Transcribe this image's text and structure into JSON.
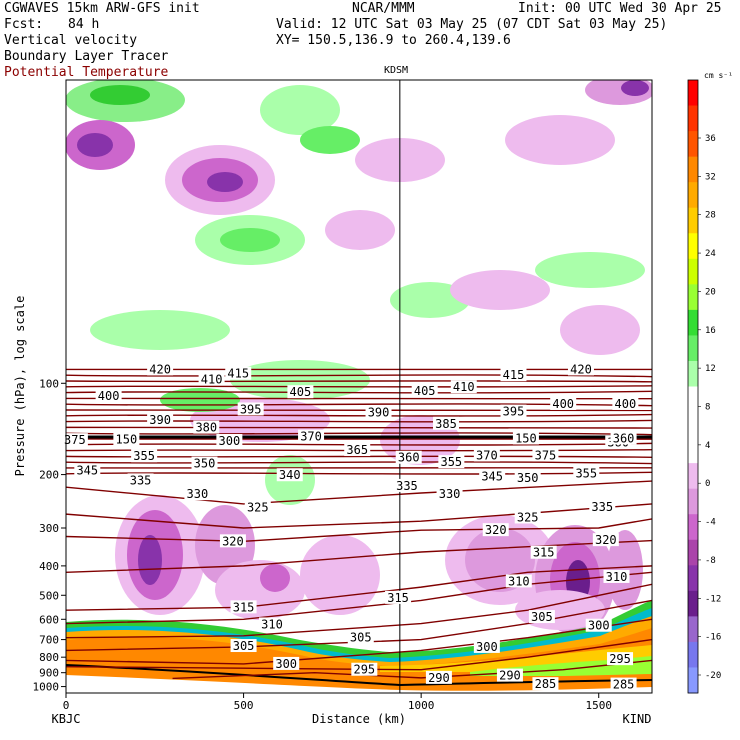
{
  "header": {
    "model": "CGWAVES 15km ARW-GFS init",
    "org": "NCAR/MMM",
    "init": "Init: 00 UTC Wed 30 Apr 25",
    "fcst_label": "Fcst:",
    "fcst_value": "84 h",
    "valid": "Valid: 12 UTC Sat 03 May 25 (07 CDT Sat 03 May 25)",
    "field1": "Vertical velocity",
    "field2": "Boundary Layer Tracer",
    "field3": "Potential Temperature",
    "xy": "XY= 150.5,136.9 to 260.4,139.6"
  },
  "colors": {
    "theta_contour": "#800000",
    "tropopause_line": "#000000"
  },
  "chart_data": {
    "type": "cross-section",
    "station_mid": "KDSM",
    "station_left": "KBJC",
    "station_right": "KIND",
    "xlabel": "Distance (km)",
    "ylabel": "Pressure (hPa), log scale",
    "xlim": [
      0,
      1650
    ],
    "ylim": [
      1050,
      10
    ],
    "x_ticks": [
      0,
      500,
      1000,
      1500
    ],
    "y_ticks": [
      100,
      200,
      300,
      400,
      500,
      600,
      700,
      800,
      900,
      1000
    ],
    "mid_station_x_km": 940,
    "colorbar": {
      "units": "cm s⁻¹",
      "labels": [
        "36",
        "32",
        "28",
        "24",
        "20",
        "16",
        "12",
        "8",
        "4",
        "0",
        "-4",
        "-8",
        "-12",
        "-16",
        "-20"
      ],
      "colors": [
        "#ff0000",
        "#ff3300",
        "#ff5500",
        "#ff8800",
        "#ffaa00",
        "#ffcc00",
        "#ffff00",
        "#ccff00",
        "#99ff33",
        "#33dd33",
        "#66ee66",
        "#aaffaa",
        "#ffffff",
        "#ffffff",
        "#ffffff",
        "#eebbee",
        "#dd99dd",
        "#cc66cc",
        "#aa44aa",
        "#8833aa",
        "#6a1e8c",
        "#9966cc",
        "#7777ee",
        "#8899ff"
      ]
    },
    "theta_labels": [
      {
        "v": "420",
        "x": 265,
        "p": 90
      },
      {
        "v": "415",
        "x": 485,
        "p": 93
      },
      {
        "v": "410",
        "x": 410,
        "p": 97
      },
      {
        "v": "405",
        "x": 660,
        "p": 107
      },
      {
        "v": "400",
        "x": 120,
        "p": 110
      },
      {
        "v": "395",
        "x": 520,
        "p": 122
      },
      {
        "v": "390",
        "x": 265,
        "p": 132
      },
      {
        "v": "380",
        "x": 395,
        "p": 140
      },
      {
        "v": "375",
        "x": 25,
        "p": 154
      },
      {
        "v": "370",
        "x": 690,
        "p": 150
      },
      {
        "v": "365",
        "x": 820,
        "p": 166
      },
      {
        "v": "360",
        "x": 965,
        "p": 176
      },
      {
        "v": "355",
        "x": 220,
        "p": 174
      },
      {
        "v": "350",
        "x": 390,
        "p": 184
      },
      {
        "v": "345",
        "x": 60,
        "p": 194
      },
      {
        "v": "340",
        "x": 630,
        "p": 201
      },
      {
        "v": "335",
        "x": 210,
        "p": 209
      },
      {
        "v": "330",
        "x": 370,
        "p": 232
      },
      {
        "v": "325",
        "x": 540,
        "p": 257
      },
      {
        "v": "320",
        "x": 470,
        "p": 332
      },
      {
        "v": "315",
        "x": 500,
        "p": 548
      },
      {
        "v": "310",
        "x": 580,
        "p": 624
      },
      {
        "v": "305",
        "x": 500,
        "p": 735
      },
      {
        "v": "300",
        "x": 620,
        "p": 842
      },
      {
        "v": "420",
        "x": 1450,
        "p": 90
      },
      {
        "v": "415",
        "x": 1260,
        "p": 94
      },
      {
        "v": "410",
        "x": 1120,
        "p": 103
      },
      {
        "v": "405",
        "x": 1010,
        "p": 106
      },
      {
        "v": "400",
        "x": 1400,
        "p": 117
      },
      {
        "v": "400",
        "x": 1575,
        "p": 117
      },
      {
        "v": "395",
        "x": 1260,
        "p": 124
      },
      {
        "v": "390",
        "x": 880,
        "p": 125
      },
      {
        "v": "385",
        "x": 1070,
        "p": 136
      },
      {
        "v": "380",
        "x": 1555,
        "p": 157
      },
      {
        "v": "375",
        "x": 1350,
        "p": 173
      },
      {
        "v": "370",
        "x": 1185,
        "p": 173
      },
      {
        "v": "355",
        "x": 1085,
        "p": 182
      },
      {
        "v": "355",
        "x": 1465,
        "p": 198
      },
      {
        "v": "350",
        "x": 1300,
        "p": 205
      },
      {
        "v": "345",
        "x": 1200,
        "p": 203
      },
      {
        "v": "335",
        "x": 960,
        "p": 218
      },
      {
        "v": "330",
        "x": 1080,
        "p": 232
      },
      {
        "v": "335",
        "x": 1510,
        "p": 256
      },
      {
        "v": "325",
        "x": 1300,
        "p": 277
      },
      {
        "v": "320",
        "x": 1210,
        "p": 305
      },
      {
        "v": "320",
        "x": 1520,
        "p": 329
      },
      {
        "v": "315",
        "x": 1345,
        "p": 362
      },
      {
        "v": "310",
        "x": 1275,
        "p": 450
      },
      {
        "v": "310",
        "x": 1550,
        "p": 435
      },
      {
        "v": "315",
        "x": 935,
        "p": 510
      },
      {
        "v": "305",
        "x": 1340,
        "p": 590
      },
      {
        "v": "305",
        "x": 830,
        "p": 690
      },
      {
        "v": "300",
        "x": 1185,
        "p": 740
      },
      {
        "v": "300",
        "x": 1500,
        "p": 630
      },
      {
        "v": "295",
        "x": 840,
        "p": 880
      },
      {
        "v": "295",
        "x": 1560,
        "p": 812
      },
      {
        "v": "290",
        "x": 1050,
        "p": 936
      },
      {
        "v": "290",
        "x": 1250,
        "p": 920
      },
      {
        "v": "285",
        "x": 1350,
        "p": 982
      },
      {
        "v": "285",
        "x": 1570,
        "p": 985
      },
      {
        "v": "150",
        "x": 170,
        "p": 153
      },
      {
        "v": "150",
        "x": 1295,
        "p": 152
      },
      {
        "v": "360",
        "x": 1570,
        "p": 152
      },
      {
        "v": "300",
        "x": 460,
        "p": 155
      }
    ]
  }
}
